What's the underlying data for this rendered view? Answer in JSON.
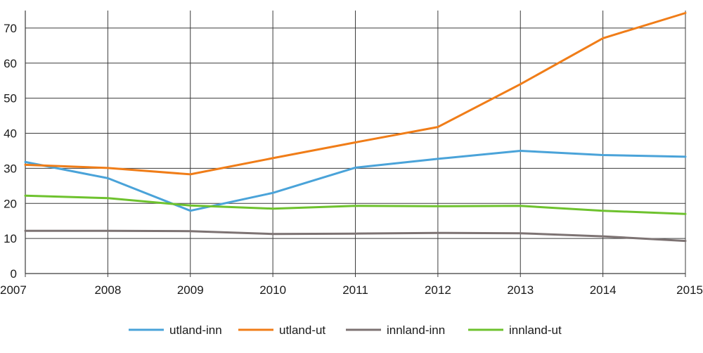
{
  "chart_data": {
    "type": "line",
    "x": [
      "2007",
      "2008",
      "2009",
      "2010",
      "2011",
      "2012",
      "2013",
      "2014",
      "2015"
    ],
    "ylim": [
      0,
      75
    ],
    "yticks": [
      "0",
      "10",
      "20",
      "30",
      "40",
      "50",
      "60",
      "70"
    ],
    "grid": true,
    "legend_position": "bottom",
    "series": [
      {
        "name": "utland-inn",
        "color": "#4aa3d9",
        "values": [
          31.8,
          27.2,
          17.9,
          23.0,
          30.2,
          32.7,
          35.0,
          33.8,
          33.3
        ]
      },
      {
        "name": "utland-ut",
        "color": "#f07d18",
        "values": [
          31.0,
          30.1,
          28.3,
          32.9,
          37.4,
          41.8,
          54.0,
          67.1,
          74.3
        ]
      },
      {
        "name": "innland-inn",
        "color": "#7d7373",
        "values": [
          12.2,
          12.2,
          12.1,
          11.3,
          11.4,
          11.6,
          11.5,
          10.6,
          9.3
        ]
      },
      {
        "name": "innland-ut",
        "color": "#6ec22e",
        "values": [
          22.2,
          21.5,
          19.4,
          18.5,
          19.3,
          19.2,
          19.3,
          17.9,
          17.0
        ]
      }
    ]
  }
}
